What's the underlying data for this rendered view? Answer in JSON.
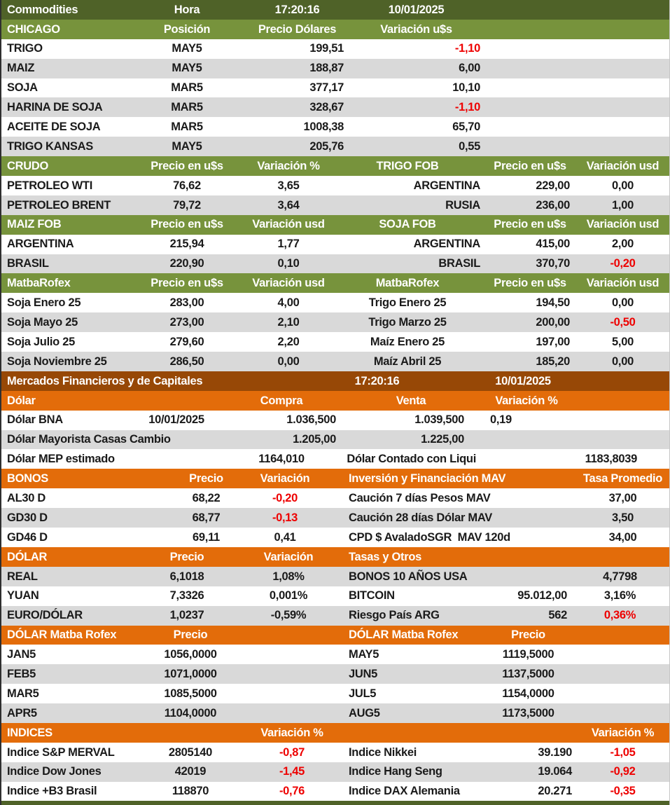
{
  "colors": {
    "olive": "#4F6228",
    "green": "#77933C",
    "brown": "#974806",
    "orange": "#E36C0A",
    "alt": "#D9D9D9",
    "neg": "#EE0000",
    "text": "#1A1A1A"
  },
  "meta": {
    "title": "Commodities",
    "time": "17:20:16",
    "date": "10/01/2025"
  },
  "sections": [
    {
      "id": "top",
      "header": {
        "style": "olive",
        "cells": [
          "Commodities",
          "Hora",
          "17:20:16",
          "10/01/2025"
        ]
      },
      "rows": []
    },
    {
      "id": "chicago",
      "header": {
        "style": "green",
        "cells": [
          "CHICAGO",
          "Posición",
          "Precio Dólares",
          "Variación u$s"
        ]
      },
      "rows": [
        {
          "cells": [
            "TRIGO",
            "MAY5",
            "199,51",
            {
              "t": "-1,10",
              "neg": true
            }
          ]
        },
        {
          "cells": [
            "MAIZ",
            "MAY5",
            "188,87",
            "6,00"
          ]
        },
        {
          "cells": [
            "SOJA",
            "MAR5",
            "377,17",
            "10,10"
          ]
        },
        {
          "cells": [
            "HARINA DE SOJA",
            "MAR5",
            "328,67",
            {
              "t": "-1,10",
              "neg": true
            }
          ]
        },
        {
          "cells": [
            "ACEITE DE SOJA",
            "MAR5",
            "1008,38",
            "65,70"
          ]
        },
        {
          "cells": [
            "TRIGO KANSAS",
            "MAY5",
            "205,76",
            "0,55"
          ]
        }
      ]
    },
    {
      "id": "crudo",
      "header": {
        "style": "green",
        "cells": [
          "CRUDO",
          "Precio en u$s",
          "Variación %",
          "TRIGO FOB",
          "Precio en u$s",
          "Variación usd"
        ]
      },
      "rows": [
        {
          "cells": [
            "PETROLEO WTI",
            "76,62",
            "3,65",
            "ARGENTINA",
            "229,00",
            "0,00"
          ]
        },
        {
          "cells": [
            "PETROLEO BRENT",
            "79,72",
            "3,64",
            "RUSIA",
            "236,00",
            "1,00"
          ]
        }
      ]
    },
    {
      "id": "maizfob",
      "header": {
        "style": "green",
        "cells": [
          "MAIZ FOB",
          "Precio en u$s",
          "Variación usd",
          "SOJA FOB",
          "Precio en u$s",
          "Variación usd"
        ]
      },
      "rows": [
        {
          "cells": [
            "ARGENTINA",
            "215,94",
            "1,77",
            "ARGENTINA",
            "415,00",
            "2,00"
          ]
        },
        {
          "cells": [
            "BRASIL",
            "220,90",
            "0,10",
            "BRASIL",
            "370,70",
            {
              "t": "-0,20",
              "neg": true
            }
          ]
        }
      ]
    },
    {
      "id": "matba",
      "header": {
        "style": "green",
        "cells": [
          "MatbaRofex",
          "Precio en u$s",
          "Variación usd",
          "MatbaRofex",
          "Precio en u$s",
          "Variación usd"
        ]
      },
      "rows": [
        {
          "cells": [
            "Soja Enero 25",
            "283,00",
            "4,00",
            "Trigo Enero 25",
            "194,50",
            "0,00"
          ]
        },
        {
          "cells": [
            "Soja Mayo 25",
            "273,00",
            "2,10",
            "Trigo Marzo 25",
            "200,00",
            {
              "t": "-0,50",
              "neg": true
            }
          ]
        },
        {
          "cells": [
            "Soja Julio 25",
            "279,60",
            "2,20",
            "Maíz Enero 25",
            "197,00",
            "5,00"
          ]
        },
        {
          "cells": [
            "Soja Noviembre 25",
            "286,50",
            "0,00",
            "Maíz Abril 25",
            "185,20",
            "0,00"
          ]
        }
      ]
    },
    {
      "id": "mercados",
      "header": {
        "style": "brown",
        "cells": [
          "Mercados Financieros y de Capitales",
          "17:20:16",
          "",
          "10/01/2025"
        ]
      },
      "rows": []
    },
    {
      "id": "dolar",
      "header": {
        "style": "orange",
        "cells": [
          "Dólar",
          "",
          "Compra",
          "Venta",
          "Variación %"
        ]
      },
      "rows": [
        {
          "cells": [
            "Dólar BNA",
            "10/01/2025",
            "1.036,500",
            "1.039,500",
            "0,19"
          ]
        },
        {
          "cells": [
            "Dólar Mayorista Casas Cambio",
            "",
            "1.205,00",
            "1.225,00",
            ""
          ]
        },
        {
          "cells": [
            "Dólar MEP estimado",
            "",
            "1164,010",
            "Dólar Contado con Liqui",
            "1183,8039"
          ]
        }
      ]
    },
    {
      "id": "bonos",
      "header": {
        "style": "orange",
        "cells": [
          "BONOS",
          "Precio",
          "Variación",
          "Inversión y Financiación MAV",
          "Tasa Promedio"
        ]
      },
      "rows": [
        {
          "cells": [
            "AL30 D",
            "68,22",
            {
              "t": "-0,20",
              "neg": true
            },
            "Caución 7 días Pesos MAV",
            "37,00"
          ]
        },
        {
          "cells": [
            "GD30 D",
            "68,77",
            {
              "t": "-0,13",
              "neg": true
            },
            "Caución 28 días Dólar MAV",
            "3,50"
          ]
        },
        {
          "cells": [
            "GD46 D",
            "69,11",
            "0,41",
            "CPD $ AvaladoSGR  MAV 120d",
            "34,00"
          ]
        }
      ]
    },
    {
      "id": "fx",
      "header": {
        "style": "orange",
        "cells": [
          "DÓLAR",
          "Precio",
          "Variación",
          "Tasas y Otros",
          "",
          ""
        ]
      },
      "rows": [
        {
          "cells": [
            "REAL",
            "6,1018",
            "1,08%",
            "BONOS 10 AÑOS USA",
            "",
            "4,7798"
          ]
        },
        {
          "cells": [
            "YUAN",
            "7,3326",
            "0,001%",
            "BITCOIN",
            "95.012,00",
            "3,16%"
          ]
        },
        {
          "cells": [
            "EURO/DÓLAR",
            "1,0237",
            "-0,59%",
            "Riesgo País ARG",
            "562",
            {
              "t": "0,36%",
              "neg": true
            }
          ]
        }
      ]
    },
    {
      "id": "matba2",
      "header": {
        "style": "orange",
        "cells": [
          "DÓLAR Matba Rofex",
          "Precio",
          "",
          "DÓLAR Matba Rofex",
          "Precio"
        ]
      },
      "rows": [
        {
          "cells": [
            "JAN5",
            "1056,0000",
            "",
            "MAY5",
            "1119,5000"
          ]
        },
        {
          "cells": [
            "FEB5",
            "1071,0000",
            "",
            "JUN5",
            "1137,5000"
          ]
        },
        {
          "cells": [
            "MAR5",
            "1085,5000",
            "",
            "JUL5",
            "1154,0000"
          ]
        },
        {
          "cells": [
            "APR5",
            "1104,0000",
            "",
            "AUG5",
            "1173,5000"
          ]
        }
      ]
    },
    {
      "id": "indices",
      "header": {
        "style": "orange",
        "cells": [
          "INDICES",
          "",
          "Variación %",
          "",
          "",
          "Variación %"
        ]
      },
      "rows": [
        {
          "cells": [
            "Indice S&P MERVAL",
            "2805140",
            {
              "t": "-0,87",
              "neg": true
            },
            "Indice Nikkei",
            "39.190",
            {
              "t": "-1,05",
              "neg": true
            }
          ]
        },
        {
          "cells": [
            "Indice Dow Jones",
            "42019",
            {
              "t": "-1,45",
              "neg": true
            },
            "Indice Hang Seng",
            "19.064",
            {
              "t": "-0,92",
              "neg": true
            }
          ]
        },
        {
          "cells": [
            "Indice +B3 Brasil",
            "118870",
            {
              "t": "-0,76",
              "neg": true
            },
            "Indice DAX Alemania",
            "20.271",
            {
              "t": "-0,35",
              "neg": true
            }
          ]
        }
      ]
    }
  ]
}
